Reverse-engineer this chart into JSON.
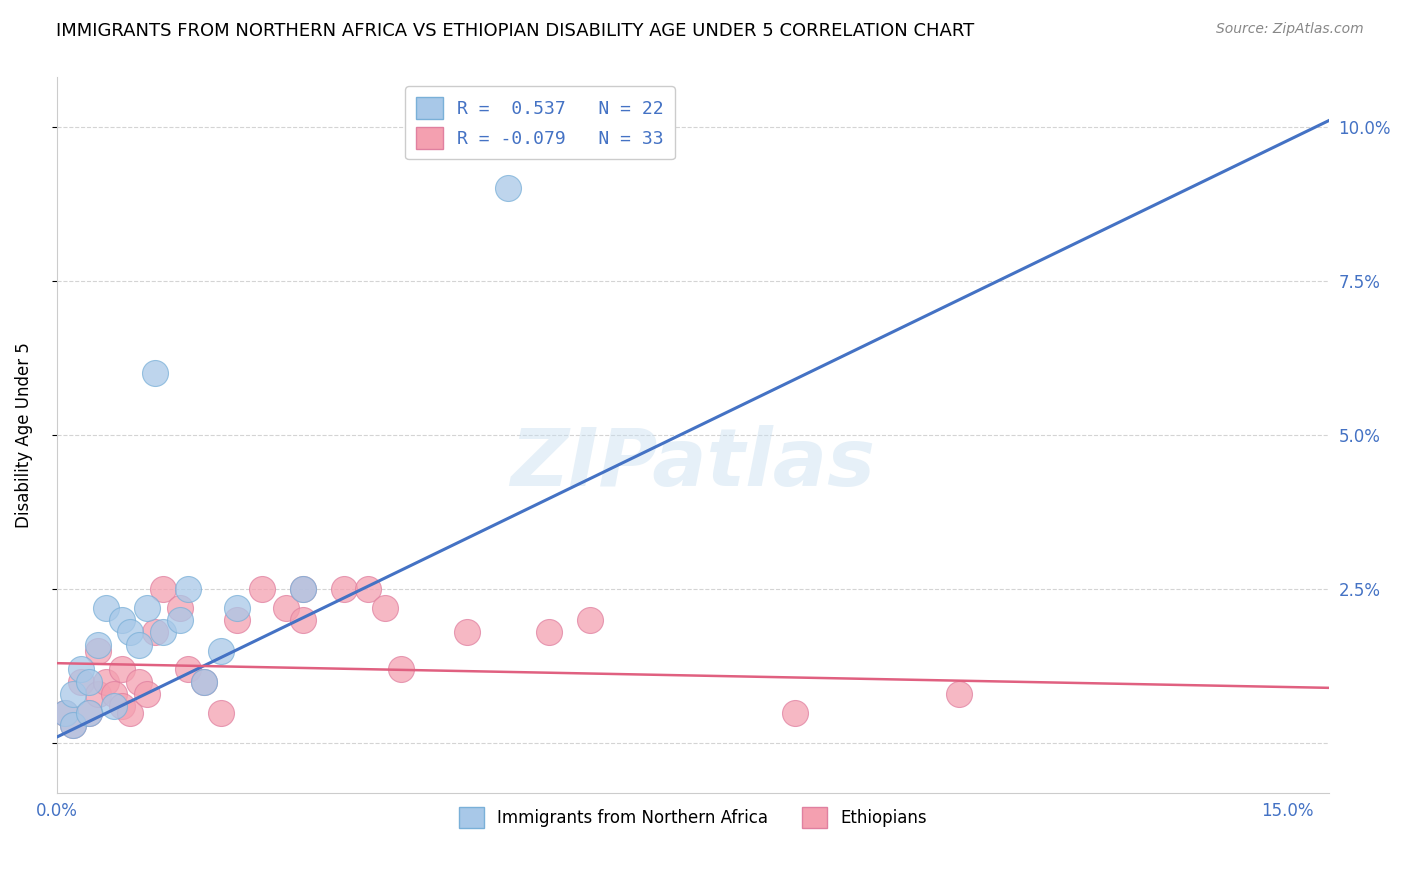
{
  "title": "IMMIGRANTS FROM NORTHERN AFRICA VS ETHIOPIAN DISABILITY AGE UNDER 5 CORRELATION CHART",
  "source": "Source: ZipAtlas.com",
  "xlabel": "",
  "ylabel": "Disability Age Under 5",
  "xlim": [
    0.0,
    0.155
  ],
  "ylim": [
    -0.008,
    0.108
  ],
  "yticks": [
    0.0,
    0.025,
    0.05,
    0.075,
    0.1
  ],
  "ytick_labels_right": [
    "",
    "2.5%",
    "5.0%",
    "7.5%",
    "10.0%"
  ],
  "xticks": [
    0.0,
    0.05,
    0.1,
    0.15
  ],
  "xtick_labels": [
    "0.0%",
    "",
    "",
    "15.0%"
  ],
  "blue_scatter_x": [
    0.001,
    0.002,
    0.002,
    0.003,
    0.004,
    0.004,
    0.005,
    0.006,
    0.007,
    0.008,
    0.009,
    0.01,
    0.011,
    0.012,
    0.013,
    0.015,
    0.016,
    0.018,
    0.02,
    0.022,
    0.03,
    0.055
  ],
  "blue_scatter_y": [
    0.005,
    0.003,
    0.008,
    0.012,
    0.005,
    0.01,
    0.016,
    0.022,
    0.006,
    0.02,
    0.018,
    0.016,
    0.022,
    0.06,
    0.018,
    0.02,
    0.025,
    0.01,
    0.015,
    0.022,
    0.025,
    0.09
  ],
  "pink_scatter_x": [
    0.001,
    0.002,
    0.003,
    0.004,
    0.005,
    0.005,
    0.006,
    0.007,
    0.008,
    0.008,
    0.009,
    0.01,
    0.011,
    0.012,
    0.013,
    0.015,
    0.016,
    0.018,
    0.02,
    0.022,
    0.025,
    0.028,
    0.03,
    0.03,
    0.035,
    0.038,
    0.04,
    0.042,
    0.05,
    0.06,
    0.065,
    0.09,
    0.11
  ],
  "pink_scatter_y": [
    0.005,
    0.003,
    0.01,
    0.005,
    0.008,
    0.015,
    0.01,
    0.008,
    0.006,
    0.012,
    0.005,
    0.01,
    0.008,
    0.018,
    0.025,
    0.022,
    0.012,
    0.01,
    0.005,
    0.02,
    0.025,
    0.022,
    0.025,
    0.02,
    0.025,
    0.025,
    0.022,
    0.012,
    0.018,
    0.018,
    0.02,
    0.005,
    0.008
  ],
  "blue_line_x": [
    0.0,
    0.155
  ],
  "blue_line_y": [
    0.001,
    0.101
  ],
  "pink_line_x": [
    0.0,
    0.155
  ],
  "pink_line_y": [
    0.013,
    0.009
  ],
  "blue_color": "#a8c8e8",
  "blue_line_color": "#4472c4",
  "pink_color": "#f4a0b0",
  "pink_line_color": "#e06080",
  "background_color": "#ffffff",
  "grid_color": "#d0d0d0",
  "legend_r_blue": "R =  0.537",
  "legend_n_blue": "N = 22",
  "legend_r_pink": "R = -0.079",
  "legend_n_pink": "N = 33",
  "watermark": "ZIPatlas",
  "legend_label_blue": "Immigrants from Northern Africa",
  "legend_label_pink": "Ethiopians"
}
